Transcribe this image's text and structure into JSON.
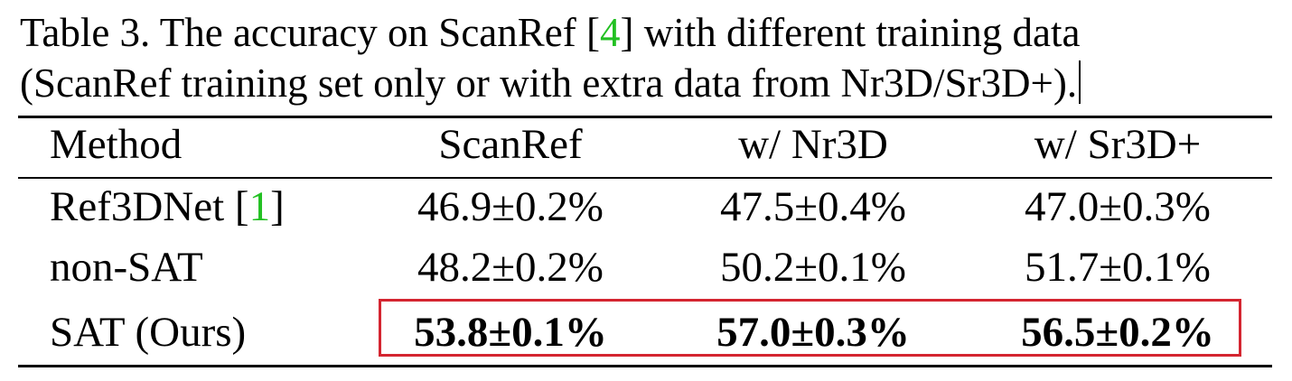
{
  "caption": {
    "line1_pre": "Table 3. The accuracy on ScanRef [",
    "line1_cite": "4",
    "line1_post": "] with different training data",
    "line2": "(ScanRef training set only or with extra data from Nr3D/Sr3D+)."
  },
  "table": {
    "headers": [
      "Method",
      "ScanRef",
      "w/ Nr3D",
      "w/ Sr3D+"
    ],
    "rows": [
      {
        "method_pre": "Ref3DNet [",
        "method_cite": "1",
        "method_post": "]",
        "values": [
          "46.9±0.2%",
          "47.5±0.4%",
          "47.0±0.3%"
        ]
      },
      {
        "method": "non-SAT",
        "values": [
          "48.2±0.2%",
          "50.2±0.1%",
          "51.7±0.1%"
        ]
      },
      {
        "method": "SAT (Ours)",
        "values": [
          "53.8±0.1%",
          "57.0±0.3%",
          "56.5±0.2%"
        ],
        "bold": true,
        "highlighted": true
      }
    ]
  },
  "colors": {
    "citation": "#22c022",
    "highlight_border": "#d42530"
  }
}
